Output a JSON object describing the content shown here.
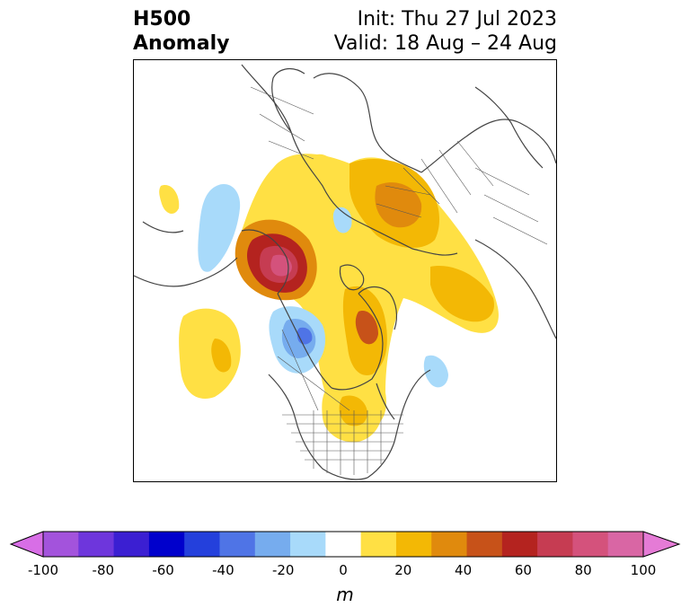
{
  "title": {
    "left_line1": "H500",
    "left_line2": "Anomaly",
    "right_line1": "Init: Thu 27 Jul 2023",
    "right_line2": "Valid: 18 Aug – 24 Aug"
  },
  "colorbar": {
    "unit": "m",
    "tick_labels": [
      "-100",
      "-80",
      "-60",
      "-40",
      "-20",
      "0",
      "20",
      "40",
      "60",
      "80",
      "100"
    ],
    "colors": [
      "#d86ee6",
      "#a353dc",
      "#6e36dc",
      "#3b1fd2",
      "#0000cc",
      "#2440dc",
      "#4f74e6",
      "#76acee",
      "#a8dafa",
      "#ffffff",
      "#ffe044",
      "#f3b805",
      "#e08a0d",
      "#c75219",
      "#b4231f",
      "#c63c52",
      "#d4527c",
      "#d966a4",
      "#e57bd6"
    ]
  },
  "chart_data": {
    "type": "heatmap",
    "variable": "H500 Anomaly",
    "unit": "m",
    "levels": [
      -100,
      -90,
      -80,
      -70,
      -60,
      -50,
      -40,
      -30,
      -20,
      -10,
      10,
      20,
      30,
      40,
      50,
      60,
      70,
      80,
      90,
      100
    ],
    "range": [
      -100,
      100
    ],
    "extend": "both"
  }
}
